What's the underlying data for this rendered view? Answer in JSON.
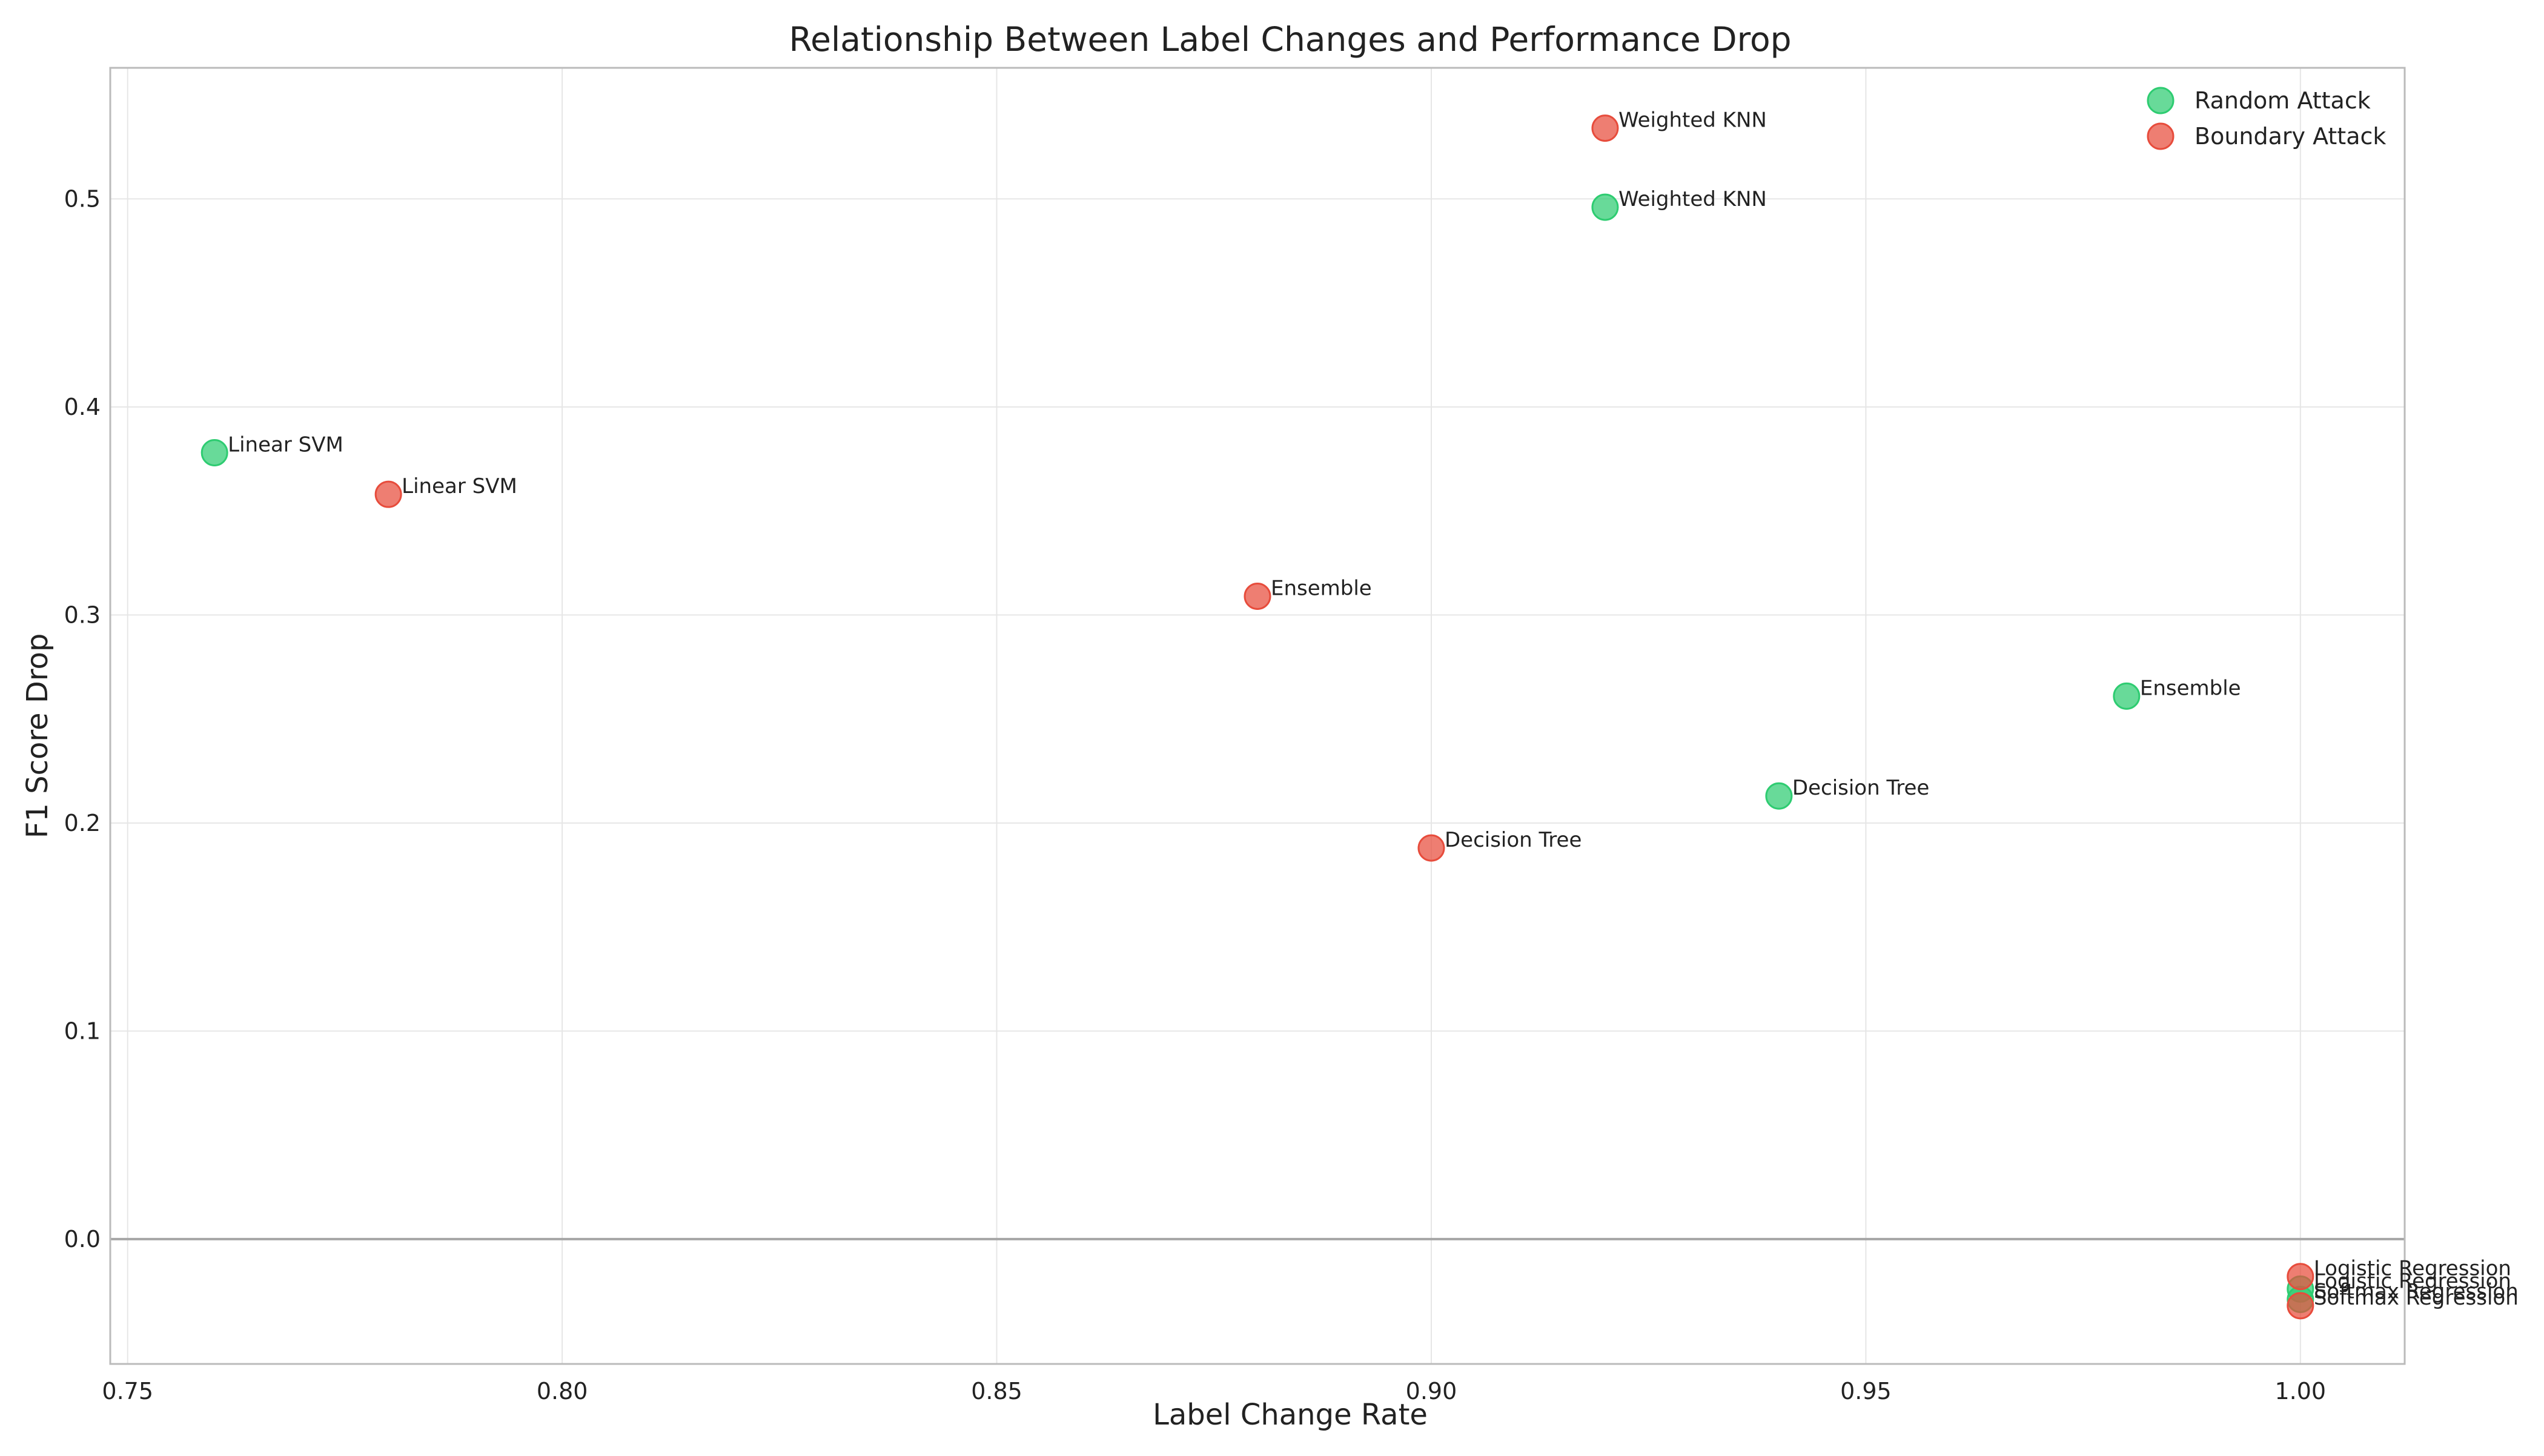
{
  "chart_data": {
    "type": "scatter",
    "title": "Relationship Between Label Changes and Performance Drop",
    "xlabel": "Label Change Rate",
    "ylabel": "F1 Score Drop",
    "xlim": [
      0.748,
      1.012
    ],
    "ylim": [
      -0.06,
      0.563
    ],
    "xticks": [
      0.75,
      0.8,
      0.85,
      0.9,
      0.95,
      1.0
    ],
    "xtick_labels": [
      "0.75",
      "0.80",
      "0.85",
      "0.90",
      "0.95",
      "1.00"
    ],
    "yticks": [
      0.0,
      0.1,
      0.2,
      0.3,
      0.4,
      0.5
    ],
    "ytick_labels": [
      "0.0",
      "0.1",
      "0.2",
      "0.3",
      "0.4",
      "0.5"
    ],
    "grid": true,
    "zero_line": true,
    "legend_position": "top-right",
    "series": [
      {
        "name": "Random Attack",
        "color": "#2ecc71",
        "points": [
          {
            "x": 0.76,
            "y": 0.378,
            "label": "Linear SVM"
          },
          {
            "x": 0.92,
            "y": 0.496,
            "label": "Weighted KNN"
          },
          {
            "x": 0.94,
            "y": 0.213,
            "label": "Decision Tree"
          },
          {
            "x": 0.98,
            "y": 0.261,
            "label": "Ensemble"
          },
          {
            "x": 1.0,
            "y": -0.024,
            "label": "Logistic Regression"
          },
          {
            "x": 1.0,
            "y": -0.029,
            "label": "Softmax Regression"
          }
        ]
      },
      {
        "name": "Boundary Attack",
        "color": "#e74c3c",
        "points": [
          {
            "x": 0.78,
            "y": 0.358,
            "label": "Linear SVM"
          },
          {
            "x": 0.92,
            "y": 0.534,
            "label": "Weighted KNN"
          },
          {
            "x": 0.88,
            "y": 0.309,
            "label": "Ensemble"
          },
          {
            "x": 0.9,
            "y": 0.188,
            "label": "Decision Tree"
          },
          {
            "x": 1.0,
            "y": -0.018,
            "label": "Logistic Regression"
          },
          {
            "x": 1.0,
            "y": -0.032,
            "label": "Softmax Regression"
          }
        ]
      }
    ]
  }
}
